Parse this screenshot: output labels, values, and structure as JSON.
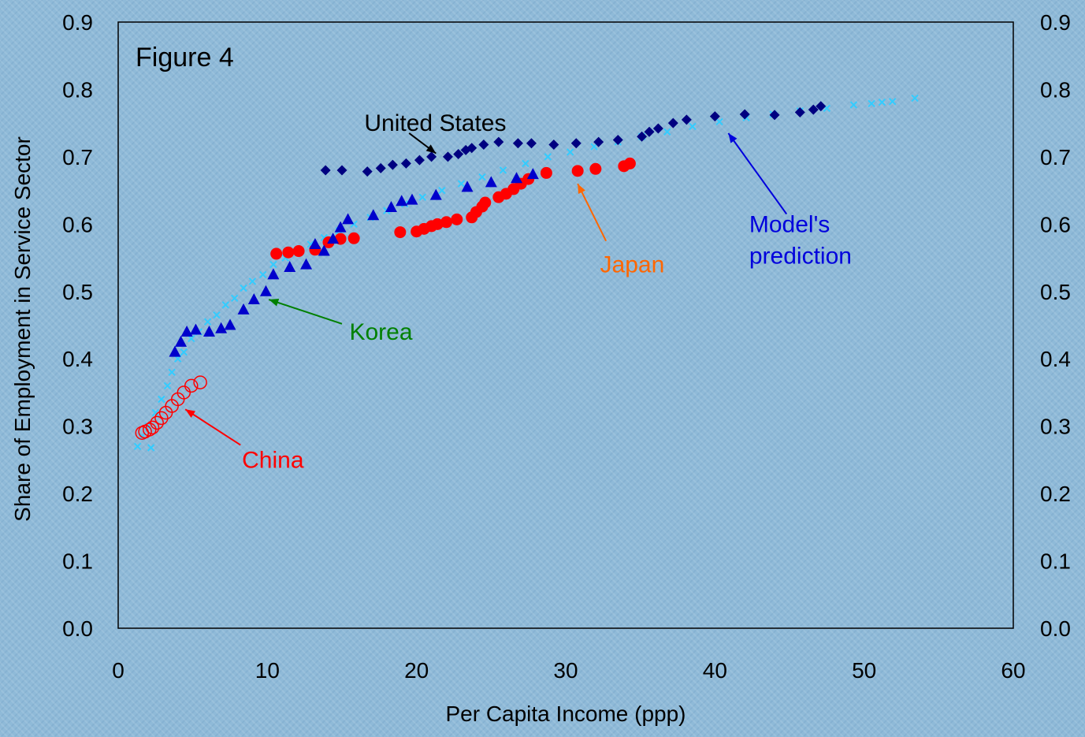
{
  "chart_data": {
    "type": "scatter",
    "title": "Figure 4",
    "xlabel": "Per Capita Income (ppp)",
    "ylabel": "Share of Employment in Service Sector",
    "xlim": [
      0,
      60
    ],
    "ylim": [
      0,
      0.9
    ],
    "x_ticks": [
      "0",
      "10",
      "20",
      "30",
      "40",
      "50",
      "60"
    ],
    "y_ticks": [
      "0.0",
      "0.1",
      "0.2",
      "0.3",
      "0.4",
      "0.5",
      "0.6",
      "0.7",
      "0.8",
      "0.9"
    ],
    "y2_ticks": [
      "0.0",
      "0.1",
      "0.2",
      "0.3",
      "0.4",
      "0.5",
      "0.6",
      "0.7",
      "0.8",
      "0.9"
    ],
    "grid": false,
    "colors": {
      "united_states": "#000080",
      "korea": "#0000cc",
      "japan": "#ff0000",
      "china": "#ff0000",
      "model": "#33ccff",
      "korea_label": "#008000",
      "japan_label": "#ff6600",
      "model_label": "#0000dd",
      "us_label": "#000000"
    },
    "series": [
      {
        "key": "united_states",
        "marker": "diamond",
        "points": [
          [
            13.9,
            0.68
          ],
          [
            15.0,
            0.68
          ],
          [
            16.7,
            0.678
          ],
          [
            17.6,
            0.683
          ],
          [
            18.4,
            0.688
          ],
          [
            19.3,
            0.69
          ],
          [
            20.2,
            0.695
          ],
          [
            21.0,
            0.7
          ],
          [
            22.1,
            0.7
          ],
          [
            22.8,
            0.704
          ],
          [
            23.3,
            0.71
          ],
          [
            23.7,
            0.713
          ],
          [
            24.5,
            0.718
          ],
          [
            25.5,
            0.722
          ],
          [
            26.8,
            0.72
          ],
          [
            27.7,
            0.72
          ],
          [
            29.2,
            0.718
          ],
          [
            30.7,
            0.72
          ],
          [
            32.2,
            0.722
          ],
          [
            33.5,
            0.725
          ],
          [
            35.1,
            0.73
          ],
          [
            35.6,
            0.737
          ],
          [
            36.2,
            0.742
          ],
          [
            37.2,
            0.75
          ],
          [
            38.1,
            0.755
          ],
          [
            40.0,
            0.76
          ],
          [
            42.0,
            0.763
          ],
          [
            44.0,
            0.762
          ],
          [
            45.7,
            0.766
          ],
          [
            46.6,
            0.77
          ],
          [
            47.1,
            0.775
          ]
        ]
      },
      {
        "key": "korea",
        "marker": "triangle",
        "points": [
          [
            3.8,
            0.41
          ],
          [
            4.2,
            0.425
          ],
          [
            4.6,
            0.44
          ],
          [
            5.2,
            0.443
          ],
          [
            6.1,
            0.44
          ],
          [
            6.9,
            0.445
          ],
          [
            7.5,
            0.45
          ],
          [
            8.4,
            0.473
          ],
          [
            9.1,
            0.488
          ],
          [
            9.9,
            0.5
          ],
          [
            10.4,
            0.525
          ],
          [
            11.5,
            0.536
          ],
          [
            12.6,
            0.54
          ],
          [
            13.2,
            0.57
          ],
          [
            13.8,
            0.56
          ],
          [
            14.4,
            0.578
          ],
          [
            14.9,
            0.595
          ],
          [
            15.4,
            0.607
          ],
          [
            17.1,
            0.613
          ],
          [
            18.3,
            0.625
          ],
          [
            19.0,
            0.634
          ],
          [
            19.7,
            0.636
          ],
          [
            21.3,
            0.643
          ],
          [
            23.4,
            0.655
          ],
          [
            25.0,
            0.662
          ],
          [
            26.7,
            0.668
          ],
          [
            27.8,
            0.674
          ]
        ]
      },
      {
        "key": "japan",
        "marker": "filled-circle",
        "points": [
          [
            10.6,
            0.556
          ],
          [
            11.4,
            0.558
          ],
          [
            12.1,
            0.56
          ],
          [
            13.2,
            0.562
          ],
          [
            14.1,
            0.573
          ],
          [
            14.9,
            0.578
          ],
          [
            15.8,
            0.579
          ],
          [
            18.9,
            0.588
          ],
          [
            20.0,
            0.589
          ],
          [
            20.5,
            0.593
          ],
          [
            21.0,
            0.597
          ],
          [
            21.4,
            0.6
          ],
          [
            22.0,
            0.603
          ],
          [
            22.7,
            0.607
          ],
          [
            23.7,
            0.61
          ],
          [
            24.0,
            0.618
          ],
          [
            24.4,
            0.626
          ],
          [
            24.6,
            0.632
          ],
          [
            25.5,
            0.64
          ],
          [
            26.0,
            0.645
          ],
          [
            26.5,
            0.652
          ],
          [
            27.0,
            0.66
          ],
          [
            27.5,
            0.667
          ],
          [
            28.7,
            0.676
          ],
          [
            30.8,
            0.679
          ],
          [
            32.0,
            0.682
          ],
          [
            33.9,
            0.686
          ],
          [
            34.3,
            0.69
          ]
        ]
      },
      {
        "key": "china",
        "marker": "open-circle",
        "points": [
          [
            1.6,
            0.29
          ],
          [
            1.8,
            0.292
          ],
          [
            2.1,
            0.295
          ],
          [
            2.3,
            0.298
          ],
          [
            2.6,
            0.305
          ],
          [
            2.9,
            0.312
          ],
          [
            3.2,
            0.32
          ],
          [
            3.6,
            0.33
          ],
          [
            4.0,
            0.34
          ],
          [
            4.4,
            0.35
          ],
          [
            4.9,
            0.36
          ],
          [
            5.5,
            0.365
          ]
        ]
      },
      {
        "key": "model",
        "marker": "x",
        "points": [
          [
            1.3,
            0.27
          ],
          [
            1.6,
            0.285
          ],
          [
            2.0,
            0.3
          ],
          [
            2.2,
            0.268
          ],
          [
            2.5,
            0.32
          ],
          [
            2.9,
            0.34
          ],
          [
            3.3,
            0.36
          ],
          [
            3.6,
            0.38
          ],
          [
            4.0,
            0.4
          ],
          [
            4.4,
            0.41
          ],
          [
            4.9,
            0.43
          ],
          [
            5.4,
            0.44
          ],
          [
            6.0,
            0.455
          ],
          [
            6.6,
            0.465
          ],
          [
            7.2,
            0.48
          ],
          [
            7.8,
            0.49
          ],
          [
            8.4,
            0.505
          ],
          [
            9.0,
            0.515
          ],
          [
            9.7,
            0.525
          ],
          [
            10.4,
            0.54
          ],
          [
            11.2,
            0.55
          ],
          [
            12.0,
            0.56
          ],
          [
            12.9,
            0.57
          ],
          [
            13.8,
            0.58
          ],
          [
            14.8,
            0.59
          ],
          [
            15.8,
            0.6
          ],
          [
            16.9,
            0.61
          ],
          [
            18.0,
            0.62
          ],
          [
            19.2,
            0.63
          ],
          [
            20.4,
            0.64
          ],
          [
            21.7,
            0.65
          ],
          [
            23.0,
            0.66
          ],
          [
            24.4,
            0.67
          ],
          [
            25.8,
            0.68
          ],
          [
            27.3,
            0.69
          ],
          [
            28.8,
            0.7
          ],
          [
            30.3,
            0.707
          ],
          [
            31.9,
            0.715
          ],
          [
            33.5,
            0.722
          ],
          [
            35.1,
            0.73
          ],
          [
            36.8,
            0.737
          ],
          [
            38.5,
            0.745
          ],
          [
            40.3,
            0.752
          ],
          [
            42.1,
            0.758
          ],
          [
            43.9,
            0.763
          ],
          [
            45.7,
            0.768
          ],
          [
            47.5,
            0.772
          ],
          [
            49.3,
            0.777
          ],
          [
            50.5,
            0.779
          ],
          [
            51.2,
            0.781
          ],
          [
            51.9,
            0.782
          ],
          [
            53.4,
            0.787
          ]
        ]
      }
    ],
    "annotations": [
      {
        "key": "united_states",
        "text": "United States",
        "color_key": "us_label",
        "label_at": [
          16.5,
          0.75
        ],
        "arrow_from": [
          19.5,
          0.735
        ],
        "arrow_to": [
          21.3,
          0.705
        ]
      },
      {
        "key": "model",
        "text": "Model's",
        "text2": "prediction",
        "color_key": "model_label",
        "label_at": [
          42.3,
          0.6
        ],
        "arrow_from": [
          44.8,
          0.615
        ],
        "arrow_to": [
          40.9,
          0.735
        ]
      },
      {
        "key": "japan",
        "text": "Japan",
        "color_key": "japan_label",
        "label_at": [
          32.3,
          0.54
        ],
        "arrow_from": [
          32.7,
          0.575
        ],
        "arrow_to": [
          30.8,
          0.66
        ]
      },
      {
        "key": "korea",
        "text": "Korea",
        "color_key": "korea_label",
        "label_at": [
          15.5,
          0.44
        ],
        "arrow_from": [
          15.0,
          0.452
        ],
        "arrow_to": [
          10.1,
          0.488
        ]
      },
      {
        "key": "china",
        "text": "China",
        "color_key": "china",
        "label_at": [
          8.3,
          0.25
        ],
        "arrow_from": [
          8.2,
          0.272
        ],
        "arrow_to": [
          4.5,
          0.325
        ]
      }
    ]
  }
}
